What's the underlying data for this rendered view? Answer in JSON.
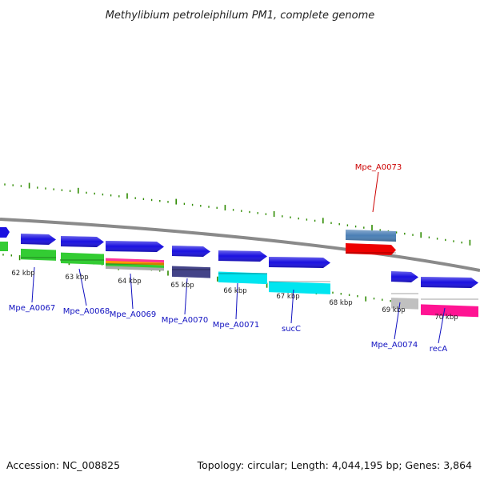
{
  "title": "Methylibium petroleiphilum PM1, complete genome",
  "footer": {
    "accession": "Accession: NC_008825",
    "summary": "Topology: circular; Length: 4,044,195 bp; Genes: 3,864"
  },
  "colors": {
    "backbone": "#8a8a8a",
    "tick_major": "#2e8b00",
    "tick_minor": "#2e8b00",
    "label_blue": "#1010c0",
    "label_red": "#cc0000",
    "gene_blue": "#1a10e0"
  },
  "scale_labels": [
    "62 kbp",
    "63 kbp",
    "64 kbp",
    "65 kbp",
    "66 kbp",
    "67 kbp",
    "68 kbp",
    "69 kbp",
    "70 kbp"
  ],
  "genes": [
    {
      "label": "Mpe_A0067",
      "strand": "forward",
      "color": "#1a10e0",
      "product_colors": [
        "#33cc33"
      ]
    },
    {
      "label": "Mpe_A0068",
      "strand": "forward",
      "color": "#1a10e0",
      "product_colors": [
        "#33cc33"
      ]
    },
    {
      "label": "Mpe_A0069",
      "strand": "forward",
      "color": "#1a10e0",
      "product_colors": [
        "#ff3399",
        "#ff9900",
        "#33cc33",
        "#aaaaaa"
      ]
    },
    {
      "label": "Mpe_A0070",
      "strand": "forward",
      "color": "#1a10e0",
      "product_colors": [
        "#444488"
      ]
    },
    {
      "label": "Mpe_A0071",
      "strand": "forward",
      "color": "#1a10e0",
      "product_colors": [
        "#00e5f0"
      ]
    },
    {
      "label": "sucC",
      "strand": "forward",
      "color": "#1a10e0",
      "product_colors": [
        "#00e5f0"
      ]
    },
    {
      "label": "Mpe_A0073",
      "strand": "reverse",
      "color": "#4a7fb5",
      "product_colors": [
        "#ee0000"
      ]
    },
    {
      "label": "Mpe_A0074",
      "strand": "forward",
      "color": "#1a10e0",
      "product_colors": [
        "#c0c0c0"
      ]
    },
    {
      "label": "recA",
      "strand": "forward",
      "color": "#1a10e0",
      "product_colors": [
        "#ff1493"
      ]
    }
  ]
}
